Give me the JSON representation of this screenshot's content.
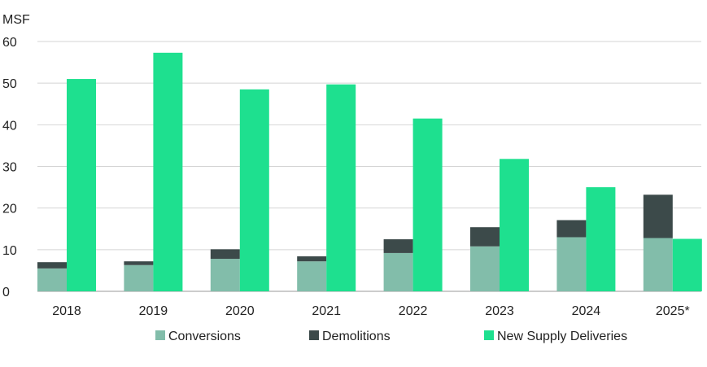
{
  "chart_data": {
    "type": "bar",
    "stacked_groups": true,
    "ylabel": "MSF",
    "ylim": [
      0,
      60
    ],
    "yticks": [
      0,
      10,
      20,
      30,
      40,
      50,
      60
    ],
    "grid": true,
    "legend_position": "bottom",
    "categories": [
      "2018",
      "2019",
      "2020",
      "2021",
      "2022",
      "2023",
      "2024",
      "2025*"
    ],
    "series": [
      {
        "name": "Conversions",
        "stack": "a",
        "color": "#82BDAA",
        "values": [
          5.5,
          6.3,
          7.8,
          7.2,
          9.2,
          10.8,
          13.0,
          12.8
        ]
      },
      {
        "name": "Demolitions",
        "stack": "a",
        "color": "#3C4A4A",
        "values": [
          1.5,
          0.9,
          2.3,
          1.2,
          3.3,
          4.6,
          4.1,
          10.4
        ]
      },
      {
        "name": "New Supply Deliveries",
        "stack": "b",
        "color": "#1EE08F",
        "values": [
          51.0,
          57.3,
          48.5,
          49.7,
          41.5,
          31.8,
          25.0,
          12.6
        ]
      }
    ]
  }
}
